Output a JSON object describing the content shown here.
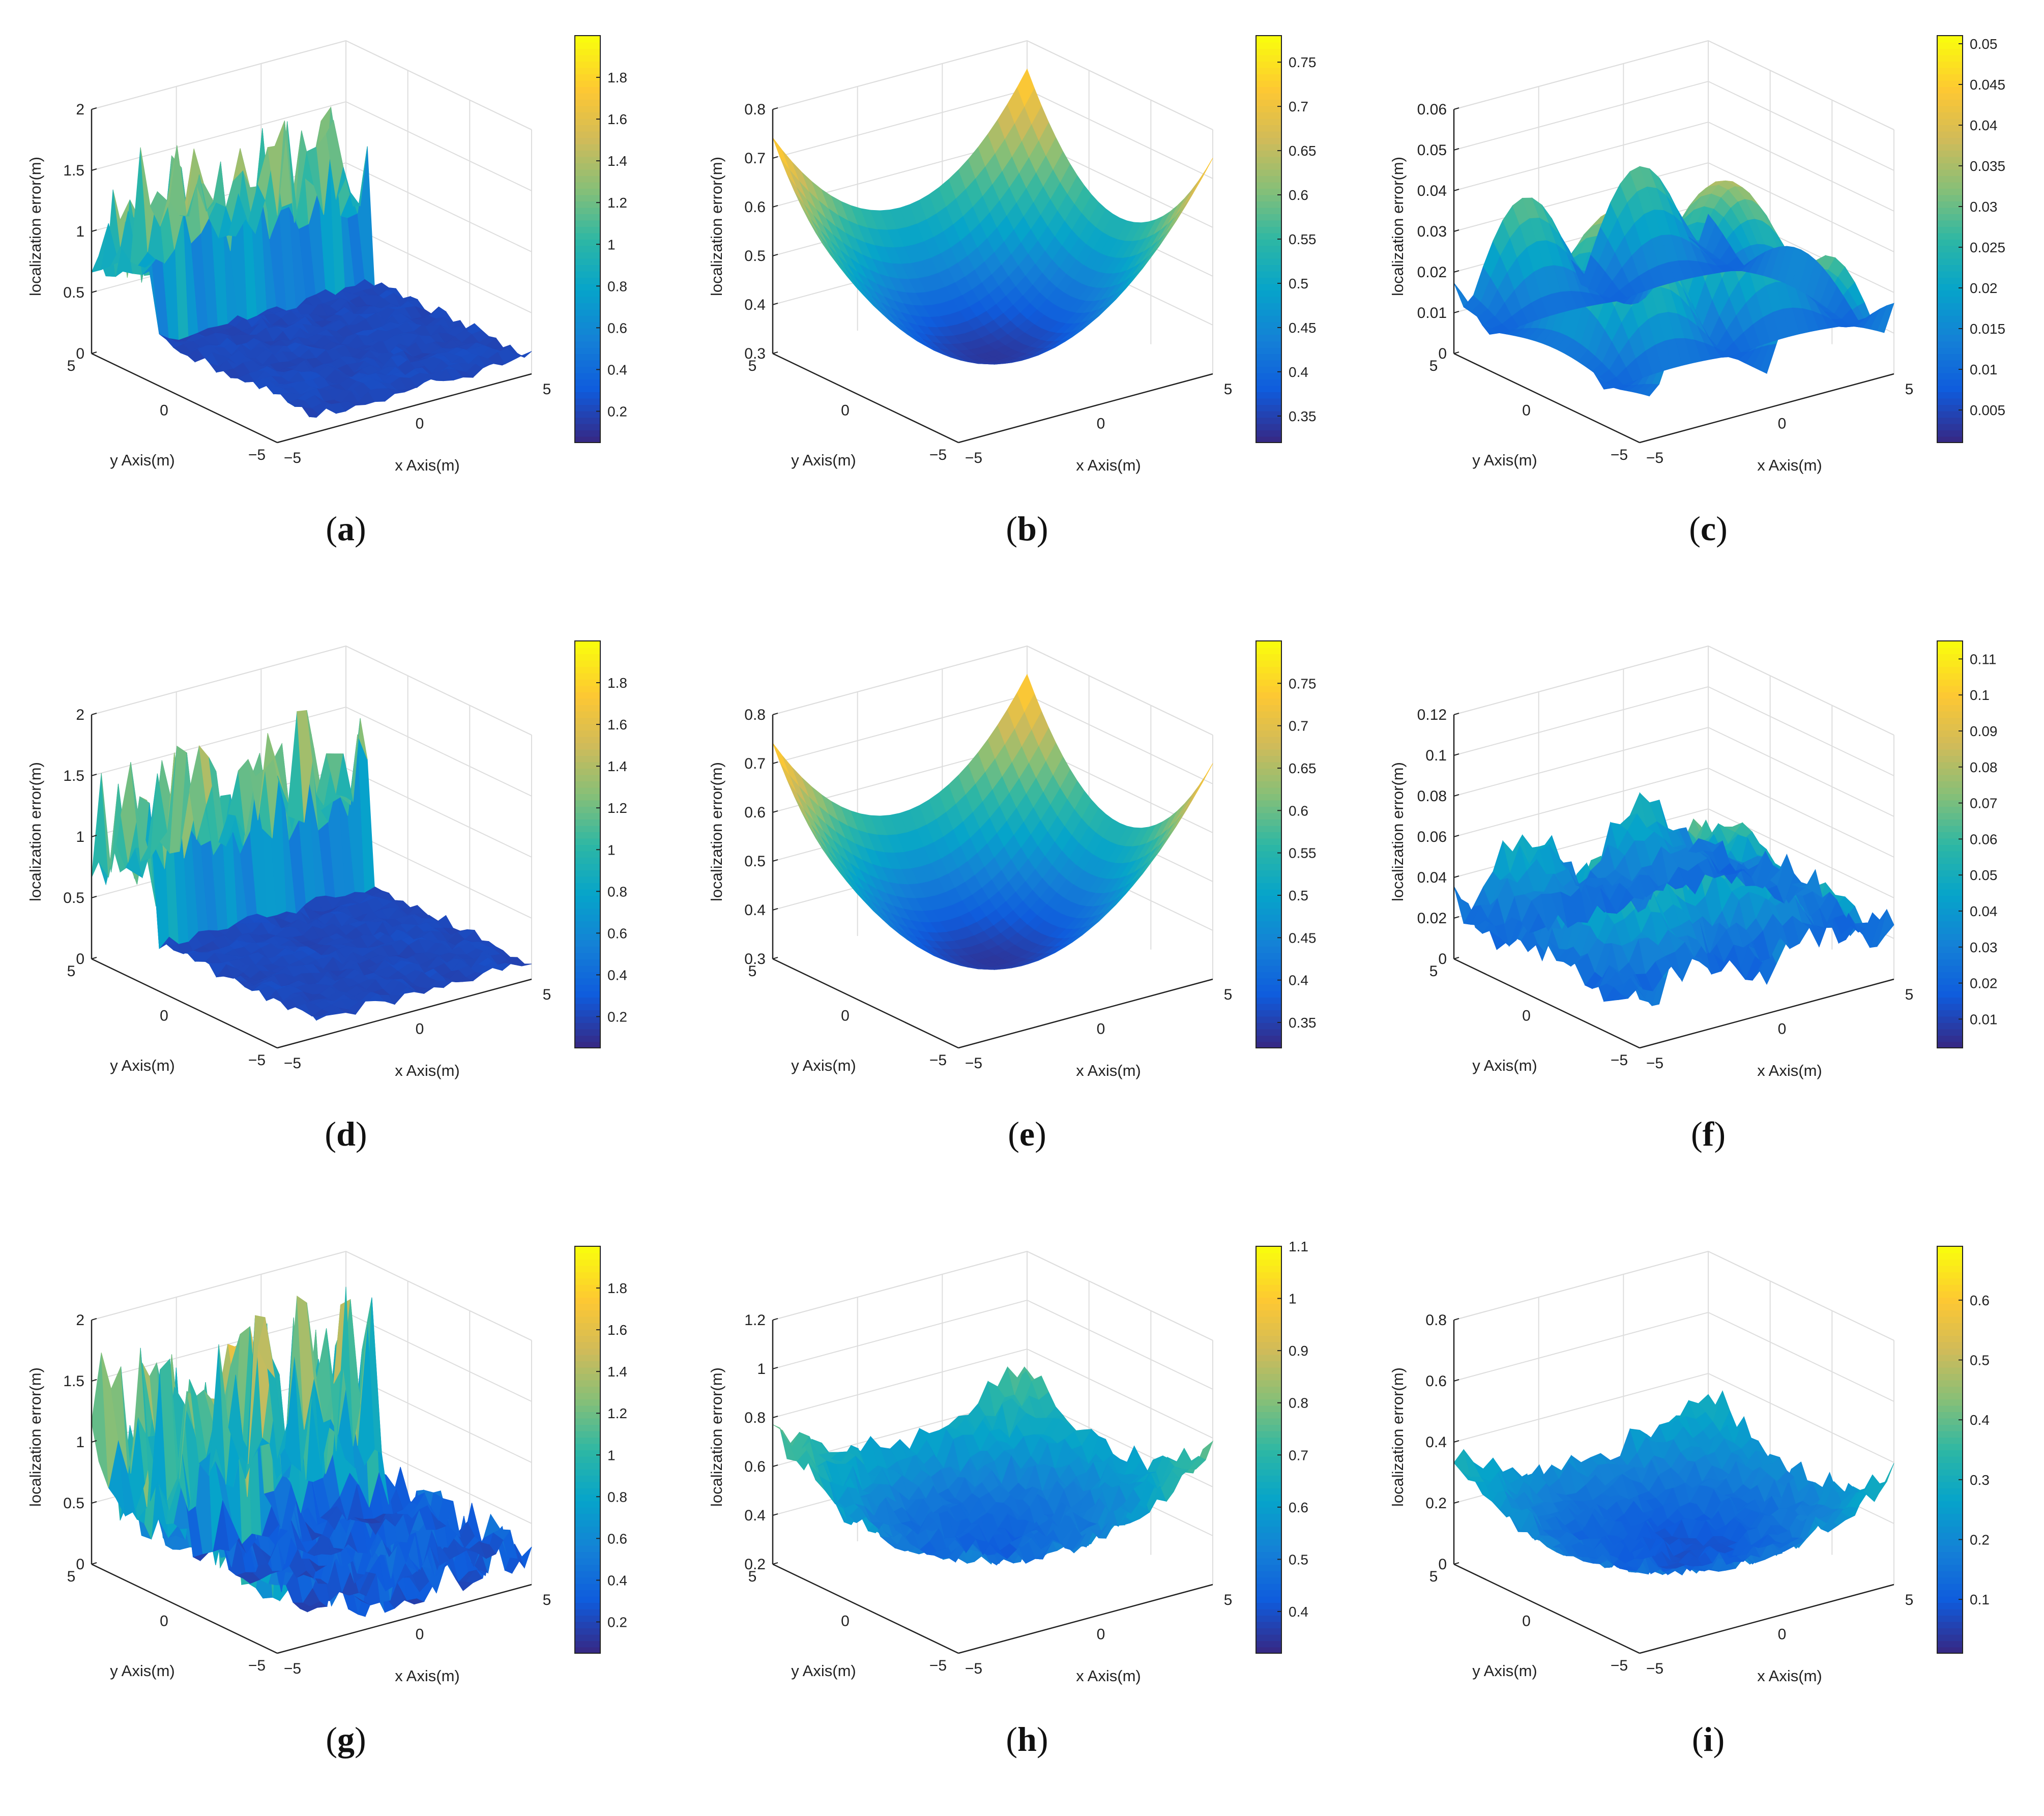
{
  "chart_data": [
    {
      "type": "surface3d",
      "caption": "a",
      "profile": "noisy-wall",
      "zlabel": "localization error(m)",
      "xlabel": "x Axis(m)",
      "ylabel": "y Axis(m)",
      "xticks": [
        "−5",
        "0",
        "5"
      ],
      "yticks": [
        "−5",
        "0",
        "5"
      ],
      "zticks": [
        "0",
        "0.5",
        "1",
        "1.5",
        "2"
      ],
      "zlim": [
        0,
        2
      ],
      "cbticks": [
        "0.2",
        "0.4",
        "0.6",
        "0.8",
        "1",
        "1.2",
        "1.4",
        "1.6",
        "1.8"
      ],
      "cbrange": [
        0.05,
        2.0
      ]
    },
    {
      "type": "surface3d",
      "caption": "b",
      "profile": "bowl",
      "zlabel": "localization error(m)",
      "xlabel": "x Axis(m)",
      "ylabel": "y Axis(m)",
      "xticks": [
        "−5",
        "0",
        "5"
      ],
      "yticks": [
        "−5",
        "0",
        "5"
      ],
      "zticks": [
        "0.3",
        "0.4",
        "0.5",
        "0.6",
        "0.7",
        "0.8"
      ],
      "zlim": [
        0.3,
        0.8
      ],
      "cbticks": [
        "0.35",
        "0.4",
        "0.45",
        "0.5",
        "0.55",
        "0.6",
        "0.65",
        "0.7",
        "0.75"
      ],
      "cbrange": [
        0.32,
        0.78
      ]
    },
    {
      "type": "surface3d",
      "caption": "c",
      "profile": "ridges",
      "zlabel": "localization error(m)",
      "xlabel": "x Axis(m)",
      "ylabel": "y Axis(m)",
      "xticks": [
        "−5",
        "0",
        "5"
      ],
      "yticks": [
        "−5",
        "0",
        "5"
      ],
      "zticks": [
        "0",
        "0.01",
        "0.02",
        "0.03",
        "0.04",
        "0.05",
        "0.06"
      ],
      "zlim": [
        0,
        0.06
      ],
      "cbticks": [
        "0.005",
        "0.01",
        "0.015",
        "0.02",
        "0.025",
        "0.03",
        "0.035",
        "0.04",
        "0.045",
        "0.05"
      ],
      "cbrange": [
        0.001,
        0.051
      ]
    },
    {
      "type": "surface3d",
      "caption": "d",
      "profile": "noisy-wall",
      "zlabel": "localization error(m)",
      "xlabel": "x Axis(m)",
      "ylabel": "y Axis(m)",
      "xticks": [
        "−5",
        "0",
        "5"
      ],
      "yticks": [
        "−5",
        "0",
        "5"
      ],
      "zticks": [
        "0",
        "0.5",
        "1",
        "1.5",
        "2"
      ],
      "zlim": [
        0,
        2
      ],
      "cbticks": [
        "0.2",
        "0.4",
        "0.6",
        "0.8",
        "1",
        "1.2",
        "1.4",
        "1.6",
        "1.8"
      ],
      "cbrange": [
        0.05,
        2.0
      ]
    },
    {
      "type": "surface3d",
      "caption": "e",
      "profile": "bowl",
      "zlabel": "localization error(m)",
      "xlabel": "x Axis(m)",
      "ylabel": "y Axis(m)",
      "xticks": [
        "−5",
        "0",
        "5"
      ],
      "yticks": [
        "−5",
        "0",
        "5"
      ],
      "zticks": [
        "0.3",
        "0.4",
        "0.5",
        "0.6",
        "0.7",
        "0.8"
      ],
      "zlim": [
        0.3,
        0.8
      ],
      "cbticks": [
        "0.35",
        "0.4",
        "0.45",
        "0.5",
        "0.55",
        "0.6",
        "0.65",
        "0.7",
        "0.75"
      ],
      "cbrange": [
        0.32,
        0.8
      ]
    },
    {
      "type": "surface3d",
      "caption": "f",
      "profile": "ridges-noisy",
      "zlabel": "localization error(m)",
      "xlabel": "x Axis(m)",
      "ylabel": "y Axis(m)",
      "xticks": [
        "−5",
        "0",
        "5"
      ],
      "yticks": [
        "−5",
        "0",
        "5"
      ],
      "zticks": [
        "0",
        "0.02",
        "0.04",
        "0.06",
        "0.08",
        "0.1",
        "0.12"
      ],
      "zlim": [
        0,
        0.12
      ],
      "cbticks": [
        "0.01",
        "0.02",
        "0.03",
        "0.04",
        "0.05",
        "0.06",
        "0.07",
        "0.08",
        "0.09",
        "0.1",
        "0.11"
      ],
      "cbrange": [
        0.002,
        0.115
      ]
    },
    {
      "type": "surface3d",
      "caption": "g",
      "profile": "noisy-floor",
      "zlabel": "localization error(m)",
      "xlabel": "x Axis(m)",
      "ylabel": "y Axis(m)",
      "xticks": [
        "−5",
        "0",
        "5"
      ],
      "yticks": [
        "−5",
        "0",
        "5"
      ],
      "zticks": [
        "0",
        "0.5",
        "1",
        "1.5",
        "2"
      ],
      "zlim": [
        0,
        2
      ],
      "cbticks": [
        "0.2",
        "0.4",
        "0.6",
        "0.8",
        "1",
        "1.2",
        "1.4",
        "1.6",
        "1.8"
      ],
      "cbrange": [
        0.05,
        2.0
      ]
    },
    {
      "type": "surface3d",
      "caption": "h",
      "profile": "bowl-noisy",
      "zlabel": "localization error(m)",
      "xlabel": "x Axis(m)",
      "ylabel": "y Axis(m)",
      "xticks": [
        "−5",
        "0",
        "5"
      ],
      "yticks": [
        "−5",
        "0",
        "5"
      ],
      "zticks": [
        "0.2",
        "0.4",
        "0.6",
        "0.8",
        "1",
        "1.2"
      ],
      "zlim": [
        0.2,
        1.2
      ],
      "cbticks": [
        "0.4",
        "0.5",
        "0.6",
        "0.7",
        "0.8",
        "0.9",
        "1",
        "1.1"
      ],
      "cbrange": [
        0.32,
        1.1
      ]
    },
    {
      "type": "surface3d",
      "caption": "i",
      "profile": "bowl-noisy-low",
      "zlabel": "localization error(m)",
      "xlabel": "x Axis(m)",
      "ylabel": "y Axis(m)",
      "xticks": [
        "−5",
        "0",
        "5"
      ],
      "yticks": [
        "−5",
        "0",
        "5"
      ],
      "zticks": [
        "0",
        "0.2",
        "0.4",
        "0.6",
        "0.8"
      ],
      "zlim": [
        0,
        0.8
      ],
      "cbticks": [
        "0.1",
        "0.2",
        "0.3",
        "0.4",
        "0.5",
        "0.6"
      ],
      "cbrange": [
        0.01,
        0.69
      ]
    }
  ],
  "colors": {
    "parula": [
      "#352a87",
      "#0f5cdd",
      "#1481d6",
      "#06a4ca",
      "#2eb7a4",
      "#87bf77",
      "#d1bb59",
      "#fec832",
      "#f9fb0e"
    ],
    "axis": "#222222",
    "grid": "#dddddd"
  }
}
